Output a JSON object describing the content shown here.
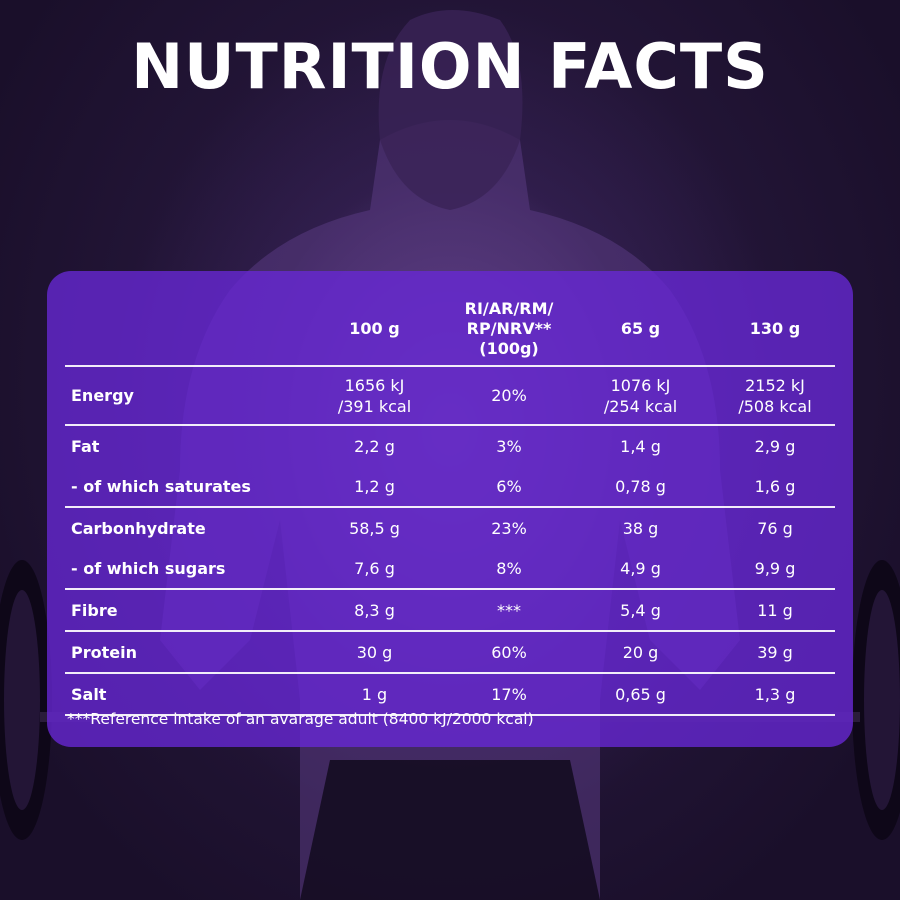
{
  "title": "NUTRITION FACTS",
  "colors": {
    "panel": "#6828d6",
    "text": "#ffffff",
    "background": "#1a0f2a"
  },
  "table": {
    "headers": [
      "",
      "100 g",
      "RI/AR/RM/\nRP/NRV**\n(100g)",
      "65 g",
      "130 g"
    ],
    "rows": [
      {
        "label": "Energy",
        "values": [
          "1656 kJ\n/391 kcal",
          "20%",
          "1076 kJ\n/254 kcal",
          "2152 kJ\n/508 kcal"
        ]
      },
      {
        "label": "Fat",
        "values": [
          "2,2 g",
          "3%",
          "1,4 g",
          "2,9 g"
        ]
      },
      {
        "label": "- of which saturates",
        "values": [
          "1,2 g",
          "6%",
          "0,78 g",
          "1,6 g"
        ]
      },
      {
        "label": "Carbonhydrate",
        "values": [
          "58,5 g",
          "23%",
          "38 g",
          "76 g"
        ]
      },
      {
        "label": "- of which sugars",
        "values": [
          "7,6 g",
          "8%",
          "4,9 g",
          "9,9 g"
        ]
      },
      {
        "label": "Fibre",
        "values": [
          "8,3 g",
          "***",
          "5,4 g",
          "11 g"
        ]
      },
      {
        "label": "Protein",
        "values": [
          "30 g",
          "60%",
          "20 g",
          "39 g"
        ]
      },
      {
        "label": "Salt",
        "values": [
          "1 g",
          "17%",
          "0,65 g",
          "1,3 g"
        ]
      }
    ]
  },
  "footnote": "***Reference intake of an avarage adult (8400 kJ/2000 kcal)"
}
